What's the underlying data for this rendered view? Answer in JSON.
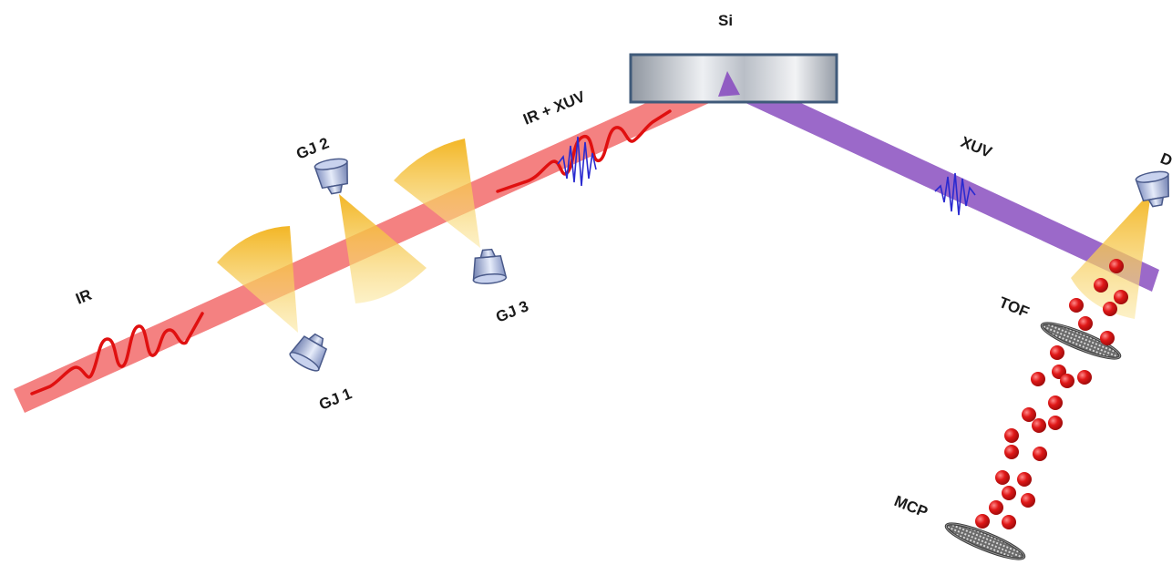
{
  "labels": {
    "si": "Si",
    "ir": "IR",
    "ir_xuv": "IR + XUV",
    "xuv": "XUV",
    "gj1": "GJ 1",
    "gj2": "GJ 2",
    "gj3": "GJ 3",
    "tof": "TOF",
    "mcp": "MCP",
    "d": "D"
  },
  "colors": {
    "ir_beam": "#f26b6b",
    "ir_pulse": "#e01010",
    "xuv_beam": "#8a4fc0",
    "xuv_pulse": "#2a2ad0",
    "gas_cone": "#f7d24a",
    "gas_jet_nozzle": "#a8b8e0",
    "electron": "#e01818",
    "si_mirror": "#a8aeb8"
  },
  "icons": {
    "gas_jet": "nozzle-icon",
    "detector_plate": "mcp-plate-icon",
    "electron": "sphere-icon"
  }
}
